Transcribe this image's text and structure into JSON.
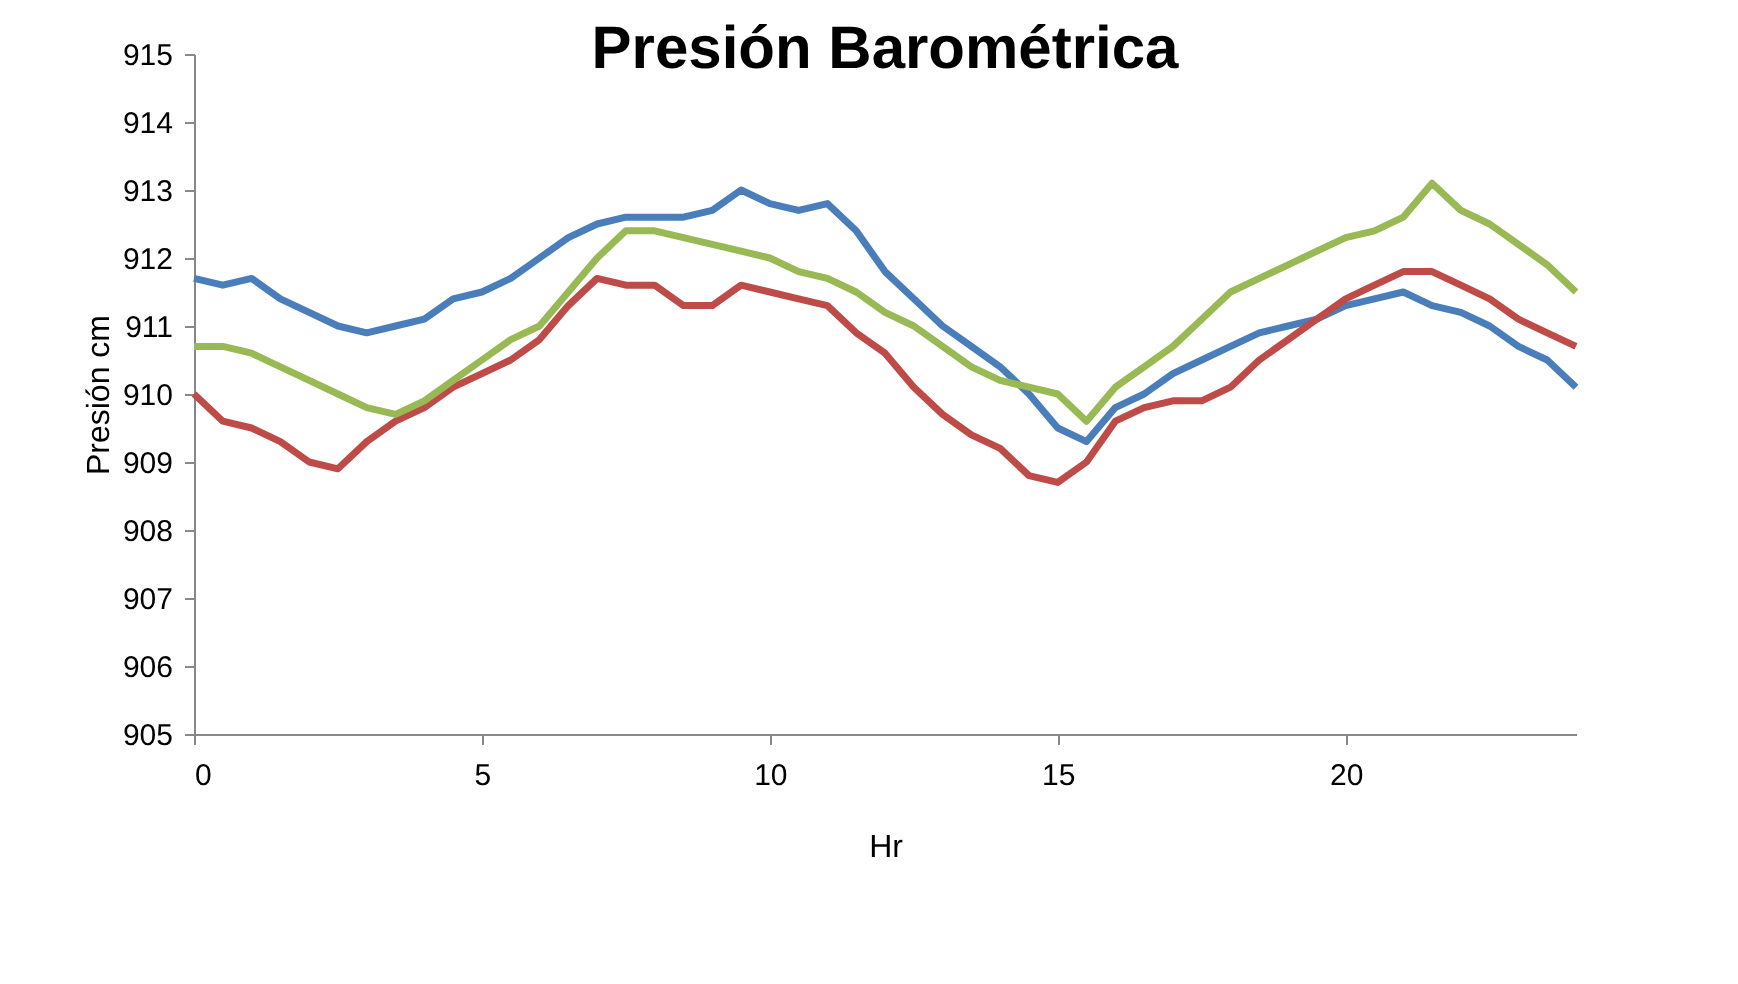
{
  "chart_data": {
    "type": "line",
    "title": "Presión Barométrica",
    "xlabel": "Hr",
    "ylabel": "Presión cm",
    "x": [
      0,
      0.5,
      1,
      1.5,
      2,
      2.5,
      3,
      3.5,
      4,
      4.5,
      5,
      5.5,
      6,
      6.5,
      7,
      7.5,
      8,
      8.5,
      9,
      9.5,
      10,
      10.5,
      11,
      11.5,
      12,
      12.5,
      13,
      13.5,
      14,
      14.5,
      15,
      15.5,
      16,
      16.5,
      17,
      17.5,
      18,
      18.5,
      19,
      19.5,
      20,
      20.5,
      21,
      21.5,
      22,
      22.5,
      23,
      23.5,
      24
    ],
    "series": [
      {
        "color": "#4a7ebb",
        "values": [
          911.7,
          911.6,
          911.7,
          911.4,
          911.2,
          911.0,
          910.9,
          911.0,
          911.1,
          911.4,
          911.5,
          911.7,
          912.0,
          912.3,
          912.5,
          912.6,
          912.6,
          912.6,
          912.7,
          913.0,
          912.8,
          912.7,
          912.8,
          912.4,
          911.8,
          911.4,
          911.0,
          910.7,
          910.4,
          910.0,
          909.5,
          909.3,
          909.8,
          910.0,
          910.3,
          910.5,
          910.7,
          910.9,
          911.0,
          911.1,
          911.3,
          911.4,
          911.5,
          911.3,
          911.2,
          911.0,
          910.7,
          910.5,
          910.1
        ]
      },
      {
        "color": "#be4b48",
        "values": [
          910.0,
          909.6,
          909.5,
          909.3,
          909.0,
          908.9,
          909.3,
          909.6,
          909.8,
          910.1,
          910.3,
          910.5,
          910.8,
          911.3,
          911.7,
          911.6,
          911.6,
          911.3,
          911.3,
          911.6,
          911.5,
          911.4,
          911.3,
          910.9,
          910.6,
          910.1,
          909.7,
          909.4,
          909.2,
          908.8,
          908.7,
          909.0,
          909.6,
          909.8,
          909.9,
          909.9,
          910.1,
          910.5,
          910.8,
          911.1,
          911.4,
          911.6,
          911.8,
          911.8,
          911.6,
          911.4,
          911.1,
          910.9,
          910.7
        ]
      },
      {
        "color": "#98b954",
        "values": [
          910.7,
          910.7,
          910.6,
          910.4,
          910.2,
          910.0,
          909.8,
          909.7,
          909.9,
          910.2,
          910.5,
          910.8,
          911.0,
          911.5,
          912.0,
          912.4,
          912.4,
          912.3,
          912.2,
          912.1,
          912.0,
          911.8,
          911.7,
          911.5,
          911.2,
          911.0,
          910.7,
          910.4,
          910.2,
          910.1,
          910.0,
          909.6,
          910.1,
          910.4,
          910.7,
          911.1,
          911.5,
          911.7,
          911.9,
          912.1,
          912.3,
          912.4,
          912.6,
          913.1,
          912.7,
          912.5,
          912.2,
          911.9,
          911.5
        ]
      }
    ],
    "xlim": [
      0,
      24
    ],
    "xticks": [
      0,
      5,
      10,
      15,
      20
    ],
    "ylim": [
      905,
      915
    ],
    "yticks": [
      905,
      906,
      907,
      908,
      909,
      910,
      911,
      912,
      913,
      914,
      915
    ],
    "grid": false,
    "legend": false,
    "line_style": "solid",
    "marker": "none"
  }
}
